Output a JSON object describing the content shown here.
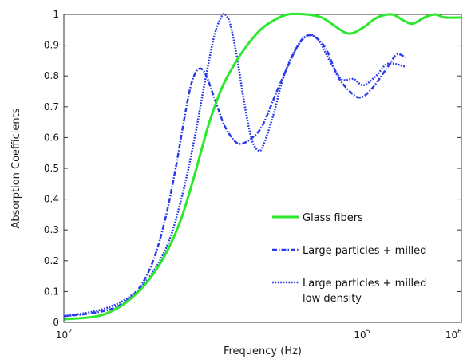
{
  "chart_data": {
    "type": "line",
    "title": "",
    "xlabel": "Frequency (Hz)",
    "ylabel": "Absorption Coefficients",
    "xscale": "log",
    "xlim": [
      100,
      1000000
    ],
    "ylim": [
      0,
      1
    ],
    "x_ticks": [
      100,
      100000,
      1000000
    ],
    "x_tick_labels": [
      {
        "base": "10",
        "exp": "2"
      },
      {
        "base": "10",
        "exp": "5"
      },
      {
        "base": "10",
        "exp": "6"
      }
    ],
    "y_ticks": [
      0,
      0.1,
      0.2,
      0.3,
      0.4,
      0.5,
      0.6,
      0.7,
      0.8,
      0.9,
      1
    ],
    "y_tick_labels": [
      "0",
      "0.1",
      "0.2",
      "0.3",
      "0.4",
      "0.5",
      "0.6",
      "0.7",
      "0.8",
      "0.9",
      "1"
    ],
    "grid": false,
    "legend_position": "lower-right",
    "series": [
      {
        "name": "Glass fibers",
        "color": "#2ee82e",
        "style": "solid",
        "points": [
          [
            100,
            0.01
          ],
          [
            216,
            0.02
          ],
          [
            363,
            0.05
          ],
          [
            563,
            0.1
          ],
          [
            806,
            0.16
          ],
          [
            1129,
            0.24
          ],
          [
            1530,
            0.34
          ],
          [
            2073,
            0.48
          ],
          [
            2850,
            0.64
          ],
          [
            3870,
            0.76
          ],
          [
            5240,
            0.84
          ],
          [
            7010,
            0.9
          ],
          [
            9500,
            0.95
          ],
          [
            12860,
            0.98
          ],
          [
            17880,
            1.0
          ],
          [
            27600,
            1.0
          ],
          [
            39260,
            0.99
          ],
          [
            54400,
            0.96
          ],
          [
            68560,
            0.94
          ],
          [
            81900,
            0.94
          ],
          [
            106100,
            0.96
          ],
          [
            142200,
            0.99
          ],
          [
            200000,
            1.0
          ],
          [
            262400,
            0.98
          ],
          [
            324800,
            0.97
          ],
          [
            425100,
            0.99
          ],
          [
            542700,
            1.0
          ],
          [
            681000,
            0.99
          ],
          [
            1000000,
            0.99
          ]
        ]
      },
      {
        "name": "Large particles + milled",
        "color": "#2a3be8",
        "style": "dashdot",
        "points": [
          [
            100,
            0.02
          ],
          [
            193,
            0.03
          ],
          [
            337,
            0.05
          ],
          [
            538,
            0.1
          ],
          [
            771,
            0.19
          ],
          [
            1037,
            0.33
          ],
          [
            1315,
            0.49
          ],
          [
            1626,
            0.66
          ],
          [
            1900,
            0.77
          ],
          [
            2218,
            0.82
          ],
          [
            2620,
            0.81
          ],
          [
            3340,
            0.72
          ],
          [
            4110,
            0.64
          ],
          [
            5190,
            0.59
          ],
          [
            6190,
            0.58
          ],
          [
            7890,
            0.6
          ],
          [
            10000,
            0.64
          ],
          [
            13900,
            0.75
          ],
          [
            19680,
            0.86
          ],
          [
            25100,
            0.92
          ],
          [
            31950,
            0.93
          ],
          [
            43000,
            0.89
          ],
          [
            56800,
            0.8
          ],
          [
            75300,
            0.75
          ],
          [
            96000,
            0.73
          ],
          [
            126800,
            0.76
          ],
          [
            182000,
            0.83
          ],
          [
            224000,
            0.87
          ],
          [
            272000,
            0.86
          ]
        ]
      },
      {
        "name": "Large particles + milled",
        "name_line2": "low density",
        "color": "#2a3be8",
        "style": "dotted",
        "points": [
          [
            100,
            0.02
          ],
          [
            230,
            0.04
          ],
          [
            444,
            0.08
          ],
          [
            738,
            0.15
          ],
          [
            1129,
            0.26
          ],
          [
            1573,
            0.42
          ],
          [
            2073,
            0.6
          ],
          [
            2620,
            0.78
          ],
          [
            3260,
            0.93
          ],
          [
            3814,
            0.99
          ],
          [
            4170,
            1.0
          ],
          [
            4705,
            0.97
          ],
          [
            5520,
            0.86
          ],
          [
            6480,
            0.72
          ],
          [
            7680,
            0.6
          ],
          [
            8860,
            0.56
          ],
          [
            10000,
            0.57
          ],
          [
            12740,
            0.67
          ],
          [
            15980,
            0.79
          ],
          [
            20960,
            0.88
          ],
          [
            27830,
            0.93
          ],
          [
            35900,
            0.92
          ],
          [
            47230,
            0.85
          ],
          [
            62130,
            0.79
          ],
          [
            81900,
            0.79
          ],
          [
            103500,
            0.77
          ],
          [
            138500,
            0.8
          ],
          [
            182000,
            0.84
          ],
          [
            272000,
            0.83
          ]
        ]
      }
    ]
  }
}
